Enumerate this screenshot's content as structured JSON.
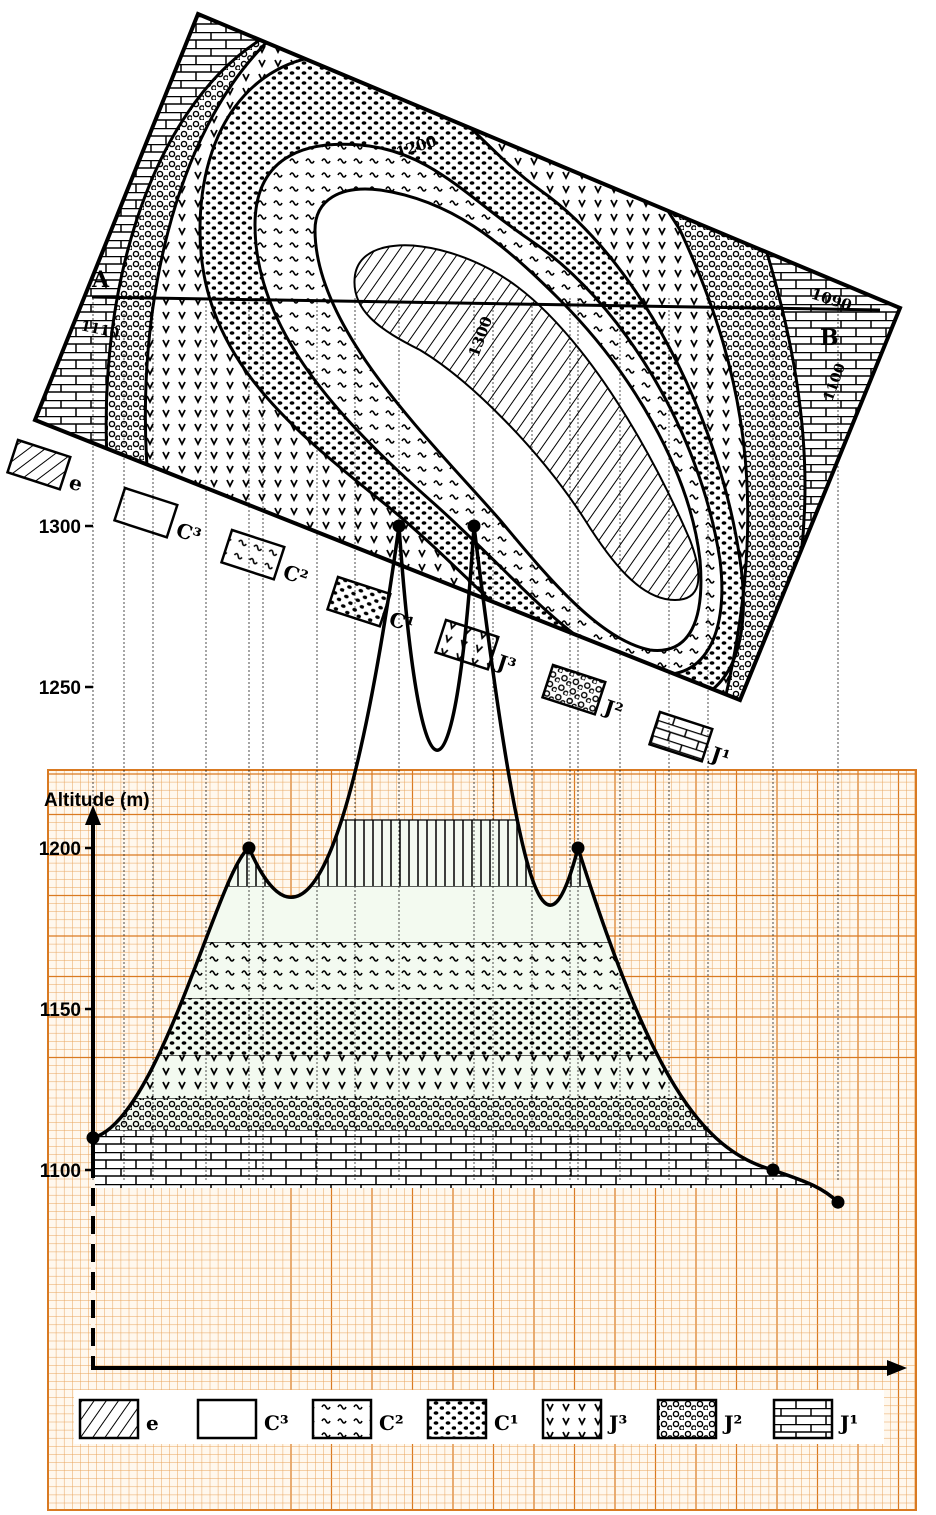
{
  "map": {
    "point_a": "A",
    "point_b": "B",
    "contour_labels": [
      "1110",
      "1200",
      "1300",
      "1090",
      "1100"
    ]
  },
  "map_legend": [
    {
      "code": "e",
      "pattern": "hatch"
    },
    {
      "code": "C³",
      "pattern": "blank"
    },
    {
      "code": "C²",
      "pattern": "waves"
    },
    {
      "code": "C¹",
      "pattern": "dots"
    },
    {
      "code": "J³",
      "pattern": "checks"
    },
    {
      "code": "J²",
      "pattern": "circles"
    },
    {
      "code": "J¹",
      "pattern": "bricks"
    }
  ],
  "section": {
    "y_axis_label": "Altitude (m)",
    "y_ticks": [
      "1100",
      "1150",
      "1200",
      "1250",
      "1300"
    ],
    "profile_altitudes": [
      1110,
      1200,
      1300,
      1300,
      1200,
      1100,
      1090
    ],
    "layer_order_bottom_to_top": [
      "J¹",
      "J²",
      "J³",
      "C¹",
      "C²",
      "C³",
      "e"
    ]
  },
  "section_legend": [
    {
      "code": "e",
      "pattern": "hatch"
    },
    {
      "code": "C³",
      "pattern": "blank"
    },
    {
      "code": "C²",
      "pattern": "waves"
    },
    {
      "code": "C¹",
      "pattern": "dots"
    },
    {
      "code": "J³",
      "pattern": "checks"
    },
    {
      "code": "J²",
      "pattern": "circles"
    },
    {
      "code": "J¹",
      "pattern": "bricks"
    }
  ],
  "colors": {
    "grid": "#e8a45c",
    "grid_major": "#d97a22",
    "layer_fill": "#f3faf0",
    "ink": "#000000"
  }
}
